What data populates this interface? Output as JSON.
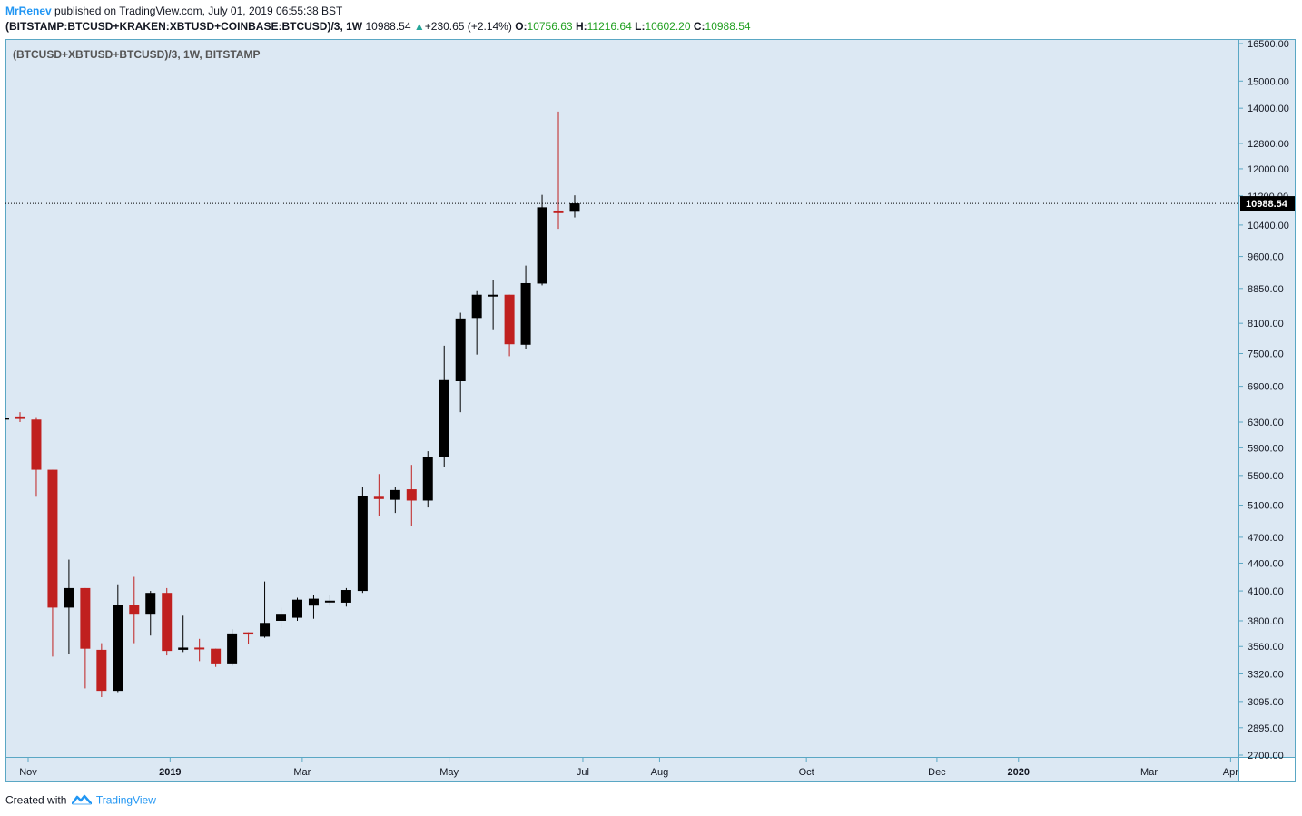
{
  "header": {
    "author": "MrRenev",
    "published_text": "published on TradingView.com, July 01, 2019 06:55:38 BST",
    "symbol": "(BITSTAMP:BTCUSD+KRAKEN:XBTUSD+COINBASE:BTCUSD)/3, 1W",
    "last_price": "10988.54",
    "change": "+230.65 (+2.14%)",
    "open_label": "O:",
    "open_value": "10756.63",
    "high_label": "H:",
    "high_value": "11216.64",
    "low_label": "L:",
    "low_value": "10602.20",
    "close_label": "C:",
    "close_value": "10988.54"
  },
  "overlay_title": "(BTCUSD+XBTUSD+BTCUSD)/3, 1W, BITSTAMP",
  "price_badge": "10988.54",
  "footer": {
    "created_with": "Created with",
    "brand": "TradingView"
  },
  "colors": {
    "background": "#dce8f3",
    "up_body": "#000000",
    "down_body": "#c0201f",
    "border": "#5aa7c4",
    "last_price_line": "#000000"
  },
  "chart_data": {
    "type": "candlestick",
    "timeframe": "1W",
    "scale": "log",
    "ylim": [
      2700,
      16500
    ],
    "y_ticks": [
      16500,
      15000,
      14000,
      12800,
      12000,
      11200,
      10400,
      9600,
      8850,
      8100,
      7500,
      6900,
      6300,
      5900,
      5500,
      5100,
      4700,
      4400,
      4100,
      3800,
      3560,
      3320,
      3095,
      2895,
      2700
    ],
    "y_tick_labels": [
      "16500.00",
      "15000.00",
      "14000.00",
      "12800.00",
      "12000.00",
      "11200.00",
      "10400.00",
      "9600.00",
      "8850.00",
      "8100.00",
      "7500.00",
      "6900.00",
      "6300.00",
      "5900.00",
      "5500.00",
      "5100.00",
      "4700.00",
      "4400.00",
      "4100.00",
      "3800.00",
      "3560.00",
      "3320.00",
      "3095.00",
      "2895.00",
      "2700.00"
    ],
    "x_labels": [
      {
        "label": "Nov",
        "bar": 0.5
      },
      {
        "label": "2019",
        "bar": 9.2
      },
      {
        "label": "Mar",
        "bar": 17.3
      },
      {
        "label": "May",
        "bar": 26.3
      },
      {
        "label": "Jul",
        "bar": 34.5
      },
      {
        "label": "Aug",
        "bar": 39.2
      },
      {
        "label": "Oct",
        "bar": 48.2
      },
      {
        "label": "Dec",
        "bar": 56.2
      },
      {
        "label": "2020",
        "bar": 61.2
      },
      {
        "label": "Mar",
        "bar": 69.2
      },
      {
        "label": "Apr",
        "bar": 74.2
      }
    ],
    "last_price": 10988.54,
    "candles": [
      {
        "o": 6390,
        "h": 6460,
        "l": 6300,
        "c": 6350
      },
      {
        "o": 6340,
        "h": 6380,
        "l": 5210,
        "c": 5580
      },
      {
        "o": 5580,
        "h": 5580,
        "l": 3470,
        "c": 3930
      },
      {
        "o": 3930,
        "h": 4440,
        "l": 3490,
        "c": 4130
      },
      {
        "o": 4130,
        "h": 4130,
        "l": 3200,
        "c": 3540
      },
      {
        "o": 3530,
        "h": 3590,
        "l": 3130,
        "c": 3180
      },
      {
        "o": 3180,
        "h": 4170,
        "l": 3170,
        "c": 3960
      },
      {
        "o": 3960,
        "h": 4250,
        "l": 3590,
        "c": 3860
      },
      {
        "o": 3860,
        "h": 4100,
        "l": 3660,
        "c": 4080
      },
      {
        "o": 4080,
        "h": 4130,
        "l": 3480,
        "c": 3520
      },
      {
        "o": 3530,
        "h": 3850,
        "l": 3510,
        "c": 3550
      },
      {
        "o": 3550,
        "h": 3630,
        "l": 3430,
        "c": 3540
      },
      {
        "o": 3540,
        "h": 3540,
        "l": 3380,
        "c": 3410
      },
      {
        "o": 3410,
        "h": 3720,
        "l": 3390,
        "c": 3680
      },
      {
        "o": 3690,
        "h": 3690,
        "l": 3580,
        "c": 3670
      },
      {
        "o": 3650,
        "h": 4200,
        "l": 3640,
        "c": 3780
      },
      {
        "o": 3800,
        "h": 3930,
        "l": 3730,
        "c": 3860
      },
      {
        "o": 3830,
        "h": 4030,
        "l": 3800,
        "c": 4010
      },
      {
        "o": 3950,
        "h": 4060,
        "l": 3820,
        "c": 4020
      },
      {
        "o": 4000,
        "h": 4060,
        "l": 3950,
        "c": 4000
      },
      {
        "o": 3980,
        "h": 4130,
        "l": 3940,
        "c": 4110
      },
      {
        "o": 4100,
        "h": 5340,
        "l": 4080,
        "c": 5220
      },
      {
        "o": 5210,
        "h": 5520,
        "l": 4960,
        "c": 5180
      },
      {
        "o": 5170,
        "h": 5340,
        "l": 5000,
        "c": 5300
      },
      {
        "o": 5310,
        "h": 5650,
        "l": 4840,
        "c": 5160
      },
      {
        "o": 5160,
        "h": 5850,
        "l": 5070,
        "c": 5770
      },
      {
        "o": 5760,
        "h": 7650,
        "l": 5620,
        "c": 7010
      },
      {
        "o": 6990,
        "h": 8320,
        "l": 6460,
        "c": 8200
      },
      {
        "o": 8210,
        "h": 8790,
        "l": 7480,
        "c": 8710
      },
      {
        "o": 8710,
        "h": 9050,
        "l": 7960,
        "c": 8710
      },
      {
        "o": 8710,
        "h": 8710,
        "l": 7450,
        "c": 7680
      },
      {
        "o": 7670,
        "h": 9380,
        "l": 7580,
        "c": 8970
      },
      {
        "o": 8960,
        "h": 11230,
        "l": 8920,
        "c": 10880
      },
      {
        "o": 10790,
        "h": 13880,
        "l": 10300,
        "c": 10720
      },
      {
        "o": 10756.63,
        "h": 11216.64,
        "l": 10602.2,
        "c": 10988.54
      }
    ]
  }
}
